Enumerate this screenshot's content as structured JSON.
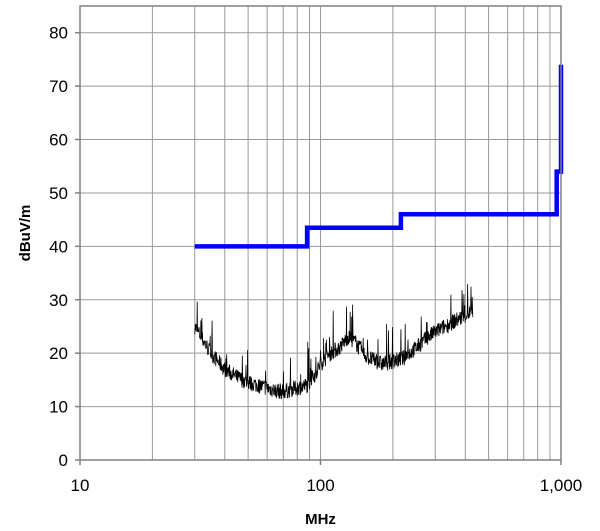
{
  "chart_data": {
    "type": "line",
    "title": "",
    "xlabel": "MHz",
    "ylabel": "dBuV/m",
    "x_scale": "log",
    "xlim": [
      10,
      1000
    ],
    "ylim": [
      0,
      85
    ],
    "grid": true,
    "x_ticks": [
      10,
      100,
      1000
    ],
    "x_tick_labels": [
      "10",
      "100",
      "1,000"
    ],
    "y_ticks": [
      0,
      10,
      20,
      30,
      40,
      50,
      60,
      70,
      80
    ],
    "y_tick_labels": [
      "0",
      "10",
      "20",
      "30",
      "40",
      "50",
      "60",
      "70",
      "80"
    ],
    "series": [
      {
        "color": "#0000ff",
        "style": "step",
        "x": [
          30,
          88,
          88,
          216,
          216,
          960,
          960,
          1000,
          1000
        ],
        "y": [
          40,
          40,
          43.5,
          43.5,
          46,
          46,
          54,
          54,
          74
        ]
      },
      {
        "color": "#000000",
        "style": "noisy",
        "x": [
          30,
          35,
          40,
          45,
          50,
          55,
          60,
          65,
          70,
          75,
          80,
          88,
          95,
          100,
          110,
          120,
          130,
          140,
          150,
          160,
          170,
          180,
          200,
          220,
          250,
          280,
          300,
          330,
          360,
          400,
          430
        ],
        "y": [
          25,
          20,
          17,
          15.5,
          14.5,
          14,
          13.5,
          13,
          12.8,
          13.2,
          13.5,
          14,
          16,
          18,
          20,
          21,
          23,
          22,
          20,
          19,
          18.5,
          18,
          18.5,
          19,
          21,
          23,
          24,
          25,
          26,
          27,
          28
        ]
      }
    ]
  }
}
